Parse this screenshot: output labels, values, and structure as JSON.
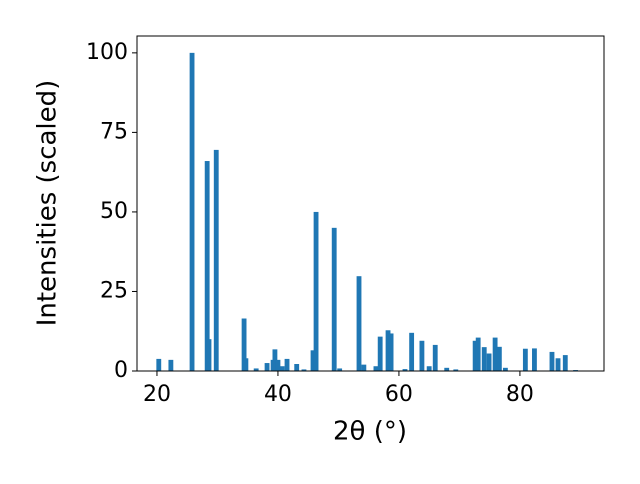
{
  "chart_data": {
    "type": "bar",
    "xlabel": "2θ (°)",
    "ylabel": "Intensities (scaled)",
    "color": "#1f77b4",
    "x": [
      20.3,
      22.3,
      25.8,
      28.3,
      28.6,
      29.8,
      34.4,
      34.7,
      36.4,
      38.2,
      39.2,
      39.5,
      40.0,
      40.7,
      41.5,
      43.1,
      44.3,
      45.8,
      46.3,
      49.3,
      50.2,
      53.4,
      54.2,
      56.2,
      56.9,
      58.2,
      58.7,
      61.0,
      62.1,
      63.8,
      65.0,
      66.0,
      67.9,
      69.4,
      72.6,
      73.1,
      74.1,
      74.9,
      75.9,
      76.6,
      77.6,
      80.9,
      82.4,
      85.3,
      86.3,
      87.5,
      89.2
    ],
    "values": [
      3.8,
      3.5,
      100,
      66,
      10,
      69.5,
      16.5,
      4,
      0.8,
      2.5,
      3.5,
      6.8,
      3.5,
      1.5,
      3.8,
      2.2,
      0.5,
      6.5,
      50,
      45,
      0.8,
      29.8,
      2,
      1.5,
      10.8,
      12.8,
      11.8,
      0.6,
      12,
      9.5,
      1.5,
      8.2,
      1,
      0.5,
      9.5,
      10.5,
      7.5,
      5.5,
      10.5,
      7.6,
      1,
      7,
      7.1,
      6,
      4,
      5,
      0.3
    ],
    "xlim": [
      16.7,
      93.9
    ],
    "ylim": [
      0,
      105.3
    ],
    "xticks": [
      20,
      40,
      60,
      80
    ],
    "yticks": [
      0,
      25,
      50,
      75,
      100
    ]
  }
}
